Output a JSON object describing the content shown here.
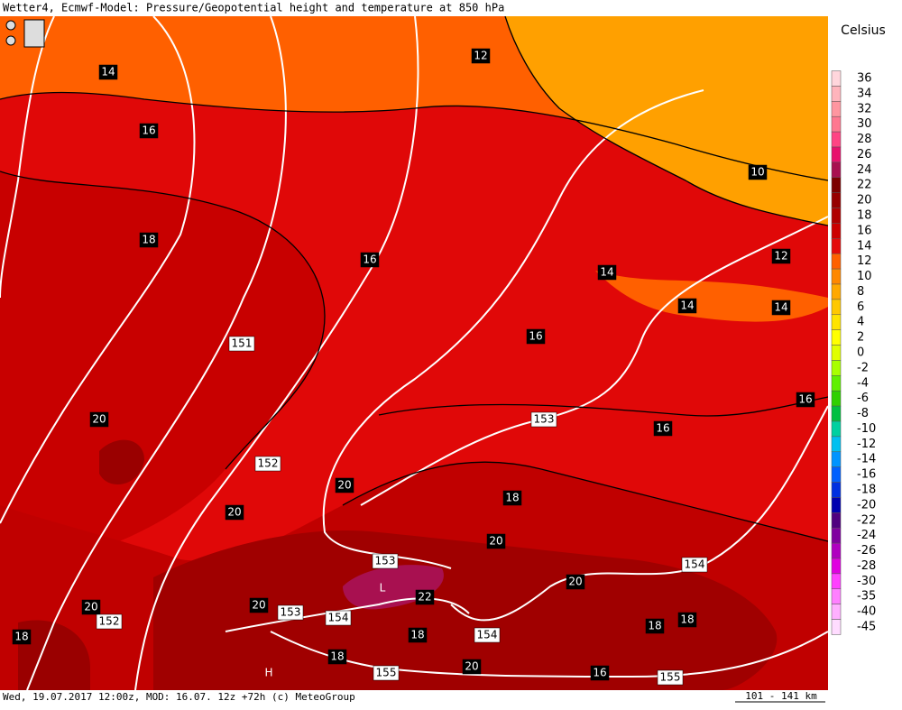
{
  "header": {
    "title": "Wetter4, Ecmwf-Model: Pressure/Geopotential height and temperature at 850 hPa"
  },
  "footer": {
    "text": "Wed, 19.07.2017 12:00z, MOD: 16.07. 12z +72h (c) MeteoGroup",
    "scale": "101 - 141 km"
  },
  "legend": {
    "title": "Celsius",
    "items": [
      {
        "label": "36",
        "color": "#ffd6dc"
      },
      {
        "label": "34",
        "color": "#ffb4bc"
      },
      {
        "label": "32",
        "color": "#ff96a0"
      },
      {
        "label": "30",
        "color": "#ff7890"
      },
      {
        "label": "28",
        "color": "#ff4484"
      },
      {
        "label": "26",
        "color": "#e8106c"
      },
      {
        "label": "24",
        "color": "#a81050"
      },
      {
        "label": "22",
        "color": "#7c0000"
      },
      {
        "label": "20",
        "color": "#960000"
      },
      {
        "label": "18",
        "color": "#b00000"
      },
      {
        "label": "16",
        "color": "#cc0000"
      },
      {
        "label": "14",
        "color": "#e40a0a"
      },
      {
        "label": "12",
        "color": "#ff6000"
      },
      {
        "label": "10",
        "color": "#ff8800"
      },
      {
        "label": "8",
        "color": "#ffa800"
      },
      {
        "label": "6",
        "color": "#ffc800"
      },
      {
        "label": "4",
        "color": "#ffe400"
      },
      {
        "label": "2",
        "color": "#ffff00"
      },
      {
        "label": "0",
        "color": "#e0ff00"
      },
      {
        "label": "-2",
        "color": "#a8ff00"
      },
      {
        "label": "-4",
        "color": "#60f000"
      },
      {
        "label": "-6",
        "color": "#30d000"
      },
      {
        "label": "-8",
        "color": "#00c040"
      },
      {
        "label": "-10",
        "color": "#00d0a0"
      },
      {
        "label": "-12",
        "color": "#00c0f0"
      },
      {
        "label": "-14",
        "color": "#0094ff"
      },
      {
        "label": "-16",
        "color": "#0060ff"
      },
      {
        "label": "-18",
        "color": "#0030e0"
      },
      {
        "label": "-20",
        "color": "#0000b0"
      },
      {
        "label": "-22",
        "color": "#500080"
      },
      {
        "label": "-24",
        "color": "#8000a0"
      },
      {
        "label": "-26",
        "color": "#b000c0"
      },
      {
        "label": "-28",
        "color": "#e000e0"
      },
      {
        "label": "-30",
        "color": "#ff40ff"
      },
      {
        "label": "-35",
        "color": "#ff80ff"
      },
      {
        "label": "-40",
        "color": "#ffb0ff"
      },
      {
        "label": "-45",
        "color": "#ffdcff"
      }
    ]
  },
  "map": {
    "labels": [
      "14",
      "12",
      "16",
      "10",
      "18",
      "16",
      "14",
      "12",
      "14",
      "14",
      "151",
      "16",
      "20",
      "16",
      "153",
      "16",
      "152",
      "20",
      "18",
      "20",
      "20",
      "153",
      "154",
      "20",
      "L",
      "22",
      "20",
      "153",
      "154",
      "20",
      "152",
      "18",
      "18",
      "18",
      "154",
      "18",
      "18",
      "H",
      "155",
      "20",
      "16",
      "155"
    ]
  }
}
